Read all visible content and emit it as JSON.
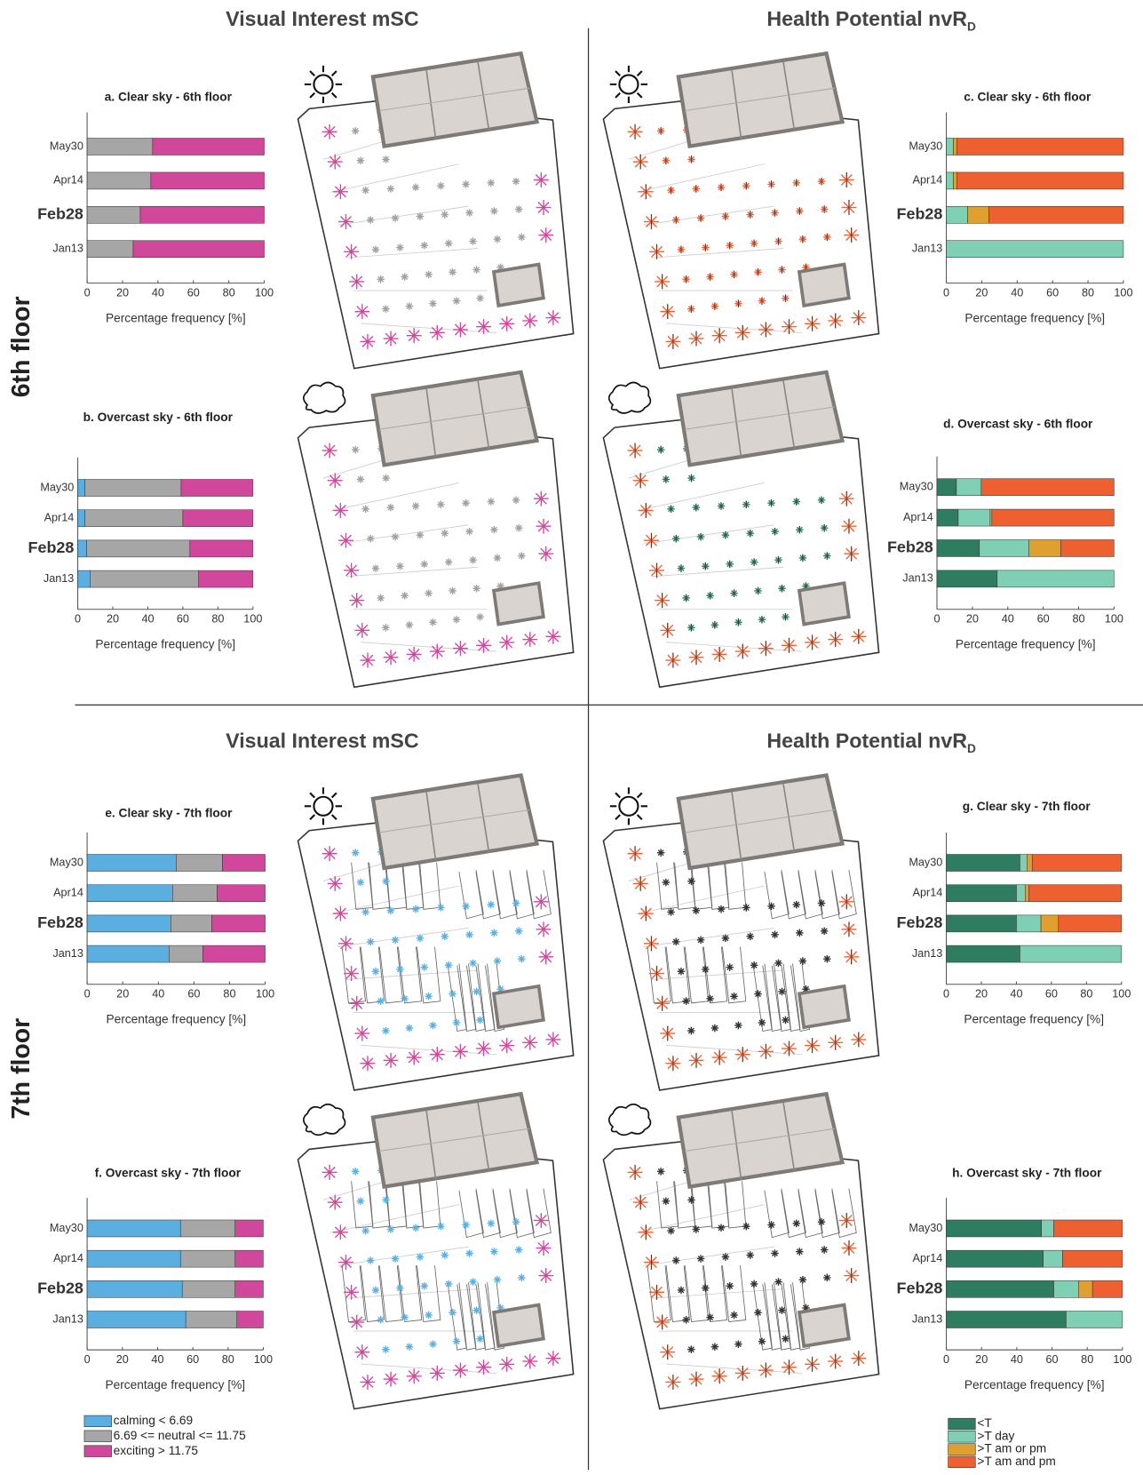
{
  "sections": [
    {
      "title": "Visual Interest mSC"
    },
    {
      "title": "Health Potential nvR",
      "subscript": "D"
    },
    {
      "title": "Visual Interest mSC"
    },
    {
      "title": "Health Potential nvR",
      "subscript": "D"
    }
  ],
  "floors": [
    "6th floor",
    "7th floor"
  ],
  "chart_data": [
    {
      "type": "bar",
      "orientation": "horizontal",
      "stacked": true,
      "title": "a. Clear sky - 6th floor",
      "categories": [
        "May30",
        "Apr14",
        "Feb28",
        "Jan13"
      ],
      "series": [
        {
          "color": "#5aafe0",
          "values": [
            0,
            0,
            0,
            0
          ]
        },
        {
          "color": "#a6a6a6",
          "values": [
            37,
            36,
            30,
            26
          ]
        },
        {
          "color": "#d1479b",
          "values": [
            63,
            64,
            70,
            74
          ]
        }
      ],
      "xlim": [
        0,
        100
      ],
      "xticks": [
        0,
        20,
        40,
        60,
        80,
        100
      ],
      "xlabel": "Percentage frequency [%]"
    },
    {
      "type": "bar",
      "orientation": "horizontal",
      "stacked": true,
      "title": "b. Overcast sky - 6th floor",
      "categories": [
        "May30",
        "Apr14",
        "Feb28",
        "Jan13"
      ],
      "series": [
        {
          "color": "#5aafe0",
          "values": [
            4,
            4,
            5,
            7
          ]
        },
        {
          "color": "#a6a6a6",
          "values": [
            55,
            56,
            59,
            62
          ]
        },
        {
          "color": "#d1479b",
          "values": [
            41,
            40,
            36,
            31
          ]
        }
      ],
      "xlim": [
        0,
        100
      ],
      "xticks": [
        0,
        20,
        40,
        60,
        80,
        100
      ],
      "xlabel": "Percentage frequency [%]"
    },
    {
      "type": "bar",
      "orientation": "horizontal",
      "stacked": true,
      "title": "c. Clear sky - 6th floor",
      "categories": [
        "May30",
        "Apr14",
        "Feb28",
        "Jan13"
      ],
      "series": [
        {
          "color": "#2e7d60",
          "values": [
            0,
            0,
            0,
            0
          ]
        },
        {
          "color": "#7fcfb4",
          "values": [
            4,
            4,
            12,
            100
          ]
        },
        {
          "color": "#e0a030",
          "values": [
            2,
            2,
            12,
            0
          ]
        },
        {
          "color": "#ef6030",
          "values": [
            94,
            94,
            76,
            0
          ]
        }
      ],
      "xlim": [
        0,
        100
      ],
      "xticks": [
        0,
        20,
        40,
        60,
        80,
        100
      ],
      "xlabel": "Percentage frequency [%]"
    },
    {
      "type": "bar",
      "orientation": "horizontal",
      "stacked": true,
      "title": "d. Overcast sky - 6th floor",
      "categories": [
        "May30",
        "Apr14",
        "Feb28",
        "Jan13"
      ],
      "series": [
        {
          "color": "#2e7d60",
          "values": [
            11,
            12,
            24,
            34
          ]
        },
        {
          "color": "#7fcfb4",
          "values": [
            14,
            18,
            28,
            66
          ]
        },
        {
          "color": "#e0a030",
          "values": [
            0,
            1,
            18,
            0
          ]
        },
        {
          "color": "#ef6030",
          "values": [
            75,
            69,
            30,
            0
          ]
        }
      ],
      "xlim": [
        0,
        100
      ],
      "xticks": [
        0,
        20,
        40,
        60,
        80,
        100
      ],
      "xlabel": "Percentage frequency [%]"
    },
    {
      "type": "bar",
      "orientation": "horizontal",
      "stacked": true,
      "title": "e. Clear sky - 7th floor",
      "categories": [
        "May30",
        "Apr14",
        "Feb28",
        "Jan13"
      ],
      "series": [
        {
          "color": "#5aafe0",
          "values": [
            50,
            48,
            47,
            46
          ]
        },
        {
          "color": "#a6a6a6",
          "values": [
            26,
            25,
            23,
            19
          ]
        },
        {
          "color": "#d1479b",
          "values": [
            24,
            27,
            30,
            35
          ]
        }
      ],
      "xlim": [
        0,
        100
      ],
      "xticks": [
        0,
        20,
        40,
        60,
        80,
        100
      ],
      "xlabel": "Percentage frequency [%]"
    },
    {
      "type": "bar",
      "orientation": "horizontal",
      "stacked": true,
      "title": "f. Overcast sky - 7th floor",
      "categories": [
        "May30",
        "Apr14",
        "Feb28",
        "Jan13"
      ],
      "series": [
        {
          "name": "calming < 6.69",
          "color": "#5aafe0",
          "values": [
            53,
            53,
            54,
            56
          ]
        },
        {
          "name": "6.69 <= neutral <= 11.75",
          "color": "#a6a6a6",
          "values": [
            31,
            31,
            30,
            29
          ]
        },
        {
          "name": "exciting > 11.75",
          "color": "#d1479b",
          "values": [
            16,
            16,
            16,
            15
          ]
        }
      ],
      "xlim": [
        0,
        100
      ],
      "xticks": [
        0,
        20,
        40,
        60,
        80,
        100
      ],
      "xlabel": "Percentage frequency [%]"
    },
    {
      "type": "bar",
      "orientation": "horizontal",
      "stacked": true,
      "title": "g. Clear sky - 7th floor",
      "categories": [
        "May30",
        "Apr14",
        "Feb28",
        "Jan13"
      ],
      "series": [
        {
          "color": "#2e7d60",
          "values": [
            42,
            40,
            40,
            42
          ]
        },
        {
          "color": "#7fcfb4",
          "values": [
            4,
            5,
            14,
            58
          ]
        },
        {
          "color": "#e0a030",
          "values": [
            3,
            2,
            10,
            0
          ]
        },
        {
          "color": "#ef6030",
          "values": [
            51,
            53,
            36,
            0
          ]
        }
      ],
      "xlim": [
        0,
        100
      ],
      "xticks": [
        0,
        20,
        40,
        60,
        80,
        100
      ],
      "xlabel": "Percentage frequency [%]"
    },
    {
      "type": "bar",
      "orientation": "horizontal",
      "stacked": true,
      "title": "h. Overcast sky - 7th floor",
      "categories": [
        "May30",
        "Apr14",
        "Feb28",
        "Jan13"
      ],
      "series": [
        {
          "name": "<T",
          "color": "#2e7d60",
          "values": [
            54,
            55,
            61,
            68
          ]
        },
        {
          "name": ">T day",
          "color": "#7fcfb4",
          "values": [
            7,
            11,
            14,
            32
          ]
        },
        {
          "name": ">T am or pm",
          "color": "#e0a030",
          "values": [
            0,
            0,
            8,
            0
          ]
        },
        {
          "name": ">T am and pm",
          "color": "#ef6030",
          "values": [
            39,
            34,
            17,
            0
          ]
        }
      ],
      "xlim": [
        0,
        100
      ],
      "xticks": [
        0,
        20,
        40,
        60,
        80,
        100
      ],
      "xlabel": "Percentage frequency [%]"
    }
  ]
}
